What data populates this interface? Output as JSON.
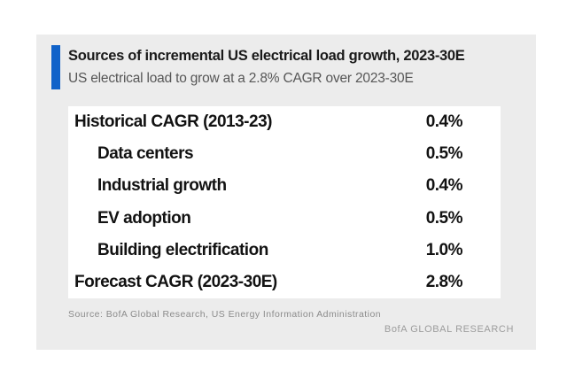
{
  "colors": {
    "accent": "#1062C9",
    "panel_bg": "#ECECEC",
    "table_bg": "#FFFFFF",
    "title_text": "#1A1A1A",
    "subtitle_text": "#565656",
    "row_text": "#121212",
    "source_text": "#8B8B8B",
    "brand_text": "#9C9C9C"
  },
  "header": {
    "title": "Sources of incremental US electrical load growth, 2023-30E",
    "subtitle": "US electrical load to grow at a 2.8% CAGR over 2023-30E"
  },
  "chart_data": {
    "type": "table",
    "title": "Sources of incremental US electrical load growth, 2023-30E",
    "subtitle": "US electrical load to grow at a 2.8% CAGR over 2023-30E",
    "rows": [
      {
        "label": "Historical CAGR (2013-23)",
        "value": "0.4%",
        "value_numeric": 0.4,
        "indent": false
      },
      {
        "label": "Data centers",
        "value": "0.5%",
        "value_numeric": 0.5,
        "indent": true
      },
      {
        "label": "Industrial growth",
        "value": "0.4%",
        "value_numeric": 0.4,
        "indent": true
      },
      {
        "label": "EV adoption",
        "value": "0.5%",
        "value_numeric": 0.5,
        "indent": true
      },
      {
        "label": "Building electrification",
        "value": "1.0%",
        "value_numeric": 1.0,
        "indent": true
      },
      {
        "label": "Forecast CAGR (2023-30E)",
        "value": "2.8%",
        "value_numeric": 2.8,
        "indent": false
      }
    ]
  },
  "footer": {
    "source": "Source: BofA Global Research, US Energy Information Administration",
    "brand": "BofA GLOBAL RESEARCH"
  }
}
